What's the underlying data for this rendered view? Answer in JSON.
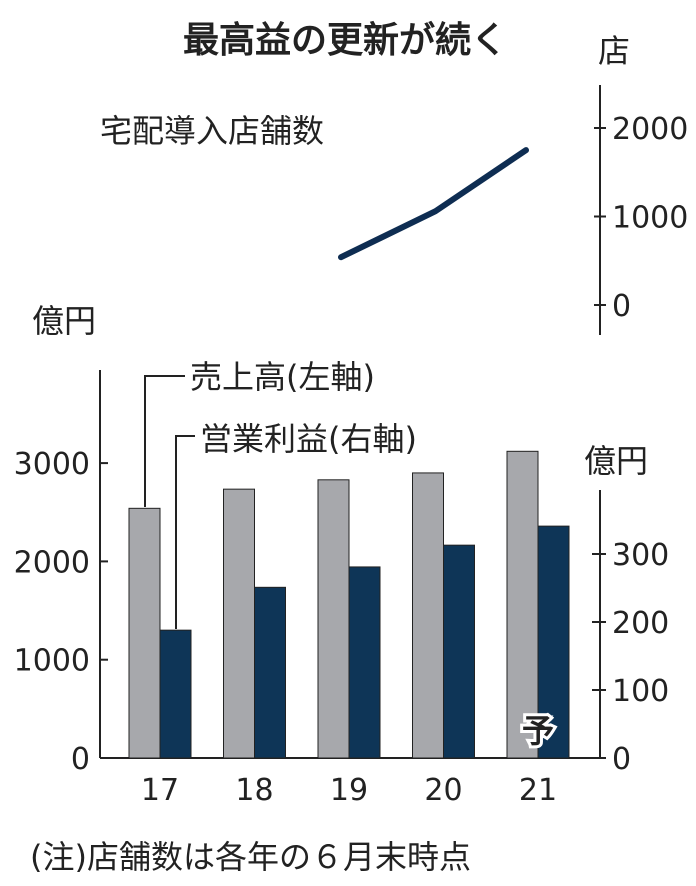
{
  "chart_data": [
    {
      "type": "line",
      "title": "最高益の更新が続く",
      "series_label": "宅配導入店舗数",
      "yunit": "店",
      "ylim": [
        0,
        2300
      ],
      "yticks": [
        0,
        1000,
        2000
      ],
      "x": [
        "19",
        "20",
        "21"
      ],
      "values": [
        540,
        1060,
        1750
      ],
      "color": "#0e2d52"
    },
    {
      "type": "bar",
      "categories": [
        "17",
        "18",
        "19",
        "20",
        "21"
      ],
      "left_axis": {
        "unit": "億円",
        "ylim": [
          0,
          4000
        ],
        "yticks": [
          0,
          1000,
          2000,
          3000
        ]
      },
      "right_axis": {
        "unit": "億円",
        "ylim": [
          0,
          550
        ],
        "yticks": [
          0,
          100,
          200,
          300
        ]
      },
      "series": [
        {
          "name": "売上高(左軸)",
          "axis": "left",
          "color": "#a7a8ac",
          "values": [
            2540,
            2735,
            2830,
            2900,
            3120
          ]
        },
        {
          "name": "営業利益(右軸)",
          "axis": "right",
          "color": "#0e3557",
          "values": [
            188,
            251,
            281,
            313,
            341
          ]
        }
      ],
      "forecast_label": "予",
      "note": "(注)店舗数は各年の６月末時点"
    }
  ]
}
